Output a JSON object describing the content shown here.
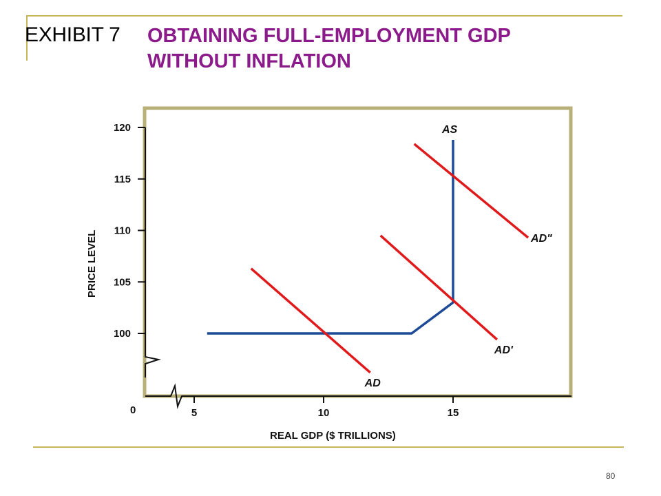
{
  "exhibit_label": "EXHIBIT 7",
  "title_line1": "OBTAINING FULL-EMPLOYMENT GDP",
  "title_line2": "WITHOUT INFLATION",
  "page_number": "80",
  "chart_data": {
    "type": "line",
    "xlabel": "REAL GDP ($ TRILLIONS)",
    "ylabel": "PRICE LEVEL",
    "xlim": [
      0,
      19
    ],
    "ylim": [
      0,
      120
    ],
    "x_axis_broken": true,
    "y_axis_broken": true,
    "origin_label": "0",
    "x_ticks": [
      {
        "value": 5,
        "label": "5"
      },
      {
        "value": 10,
        "label": "10"
      },
      {
        "value": 15,
        "label": "15"
      }
    ],
    "y_ticks": [
      {
        "value": 100,
        "label": "100"
      },
      {
        "value": 105,
        "label": "105"
      },
      {
        "value": 110,
        "label": "110"
      },
      {
        "value": 115,
        "label": "115"
      },
      {
        "value": 120,
        "label": "120"
      }
    ],
    "grid": false,
    "series": [
      {
        "name": "AS",
        "color": "#1c4a96",
        "points": [
          [
            5.5,
            100
          ],
          [
            13.4,
            100
          ],
          [
            15,
            103
          ],
          [
            15,
            118.8
          ]
        ]
      },
      {
        "name": "AD",
        "color": "#e0191b",
        "points": [
          [
            7.2,
            106.3
          ],
          [
            11.8,
            96.2
          ]
        ]
      },
      {
        "name": "AD'",
        "color": "#e0191b",
        "points": [
          [
            12.2,
            109.5
          ],
          [
            16.7,
            99.4
          ]
        ]
      },
      {
        "name": "AD\"",
        "color": "#e0191b",
        "points": [
          [
            13.5,
            118.4
          ],
          [
            17.9,
            109.3
          ]
        ]
      }
    ],
    "frame_color": "#b8b078"
  }
}
